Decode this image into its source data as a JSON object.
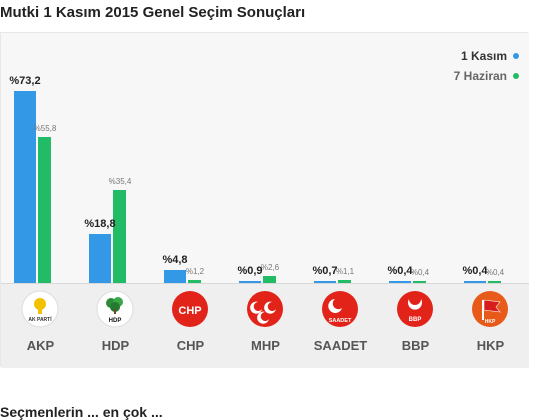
{
  "page": {
    "title": "Mutki 1 Kasım 2015 Genel Seçim Sonuçları",
    "footer_text": "Seçmenlerin ... en çok ..."
  },
  "legend": [
    {
      "label": "1 Kasım",
      "color": "#3399e6"
    },
    {
      "label": "7 Haziran",
      "color": "#22bb66"
    }
  ],
  "parties": [
    {
      "name": "AKP",
      "logo_icon": "akp-logo-icon"
    },
    {
      "name": "HDP",
      "logo_icon": "hdp-logo-icon"
    },
    {
      "name": "CHP",
      "logo_icon": "chp-logo-icon"
    },
    {
      "name": "MHP",
      "logo_icon": "mhp-logo-icon"
    },
    {
      "name": "SAADET",
      "logo_icon": "saadet-logo-icon"
    },
    {
      "name": "BBP",
      "logo_icon": "bbp-logo-icon"
    },
    {
      "name": "HKP",
      "logo_icon": "hkp-logo-icon"
    }
  ],
  "chart_data": {
    "type": "bar",
    "title": "Mutki 1 Kasım 2015 Genel Seçim Sonuçları",
    "categories": [
      "AKP",
      "HDP",
      "CHP",
      "MHP",
      "SAADET",
      "BBP",
      "HKP"
    ],
    "series": [
      {
        "name": "1 Kasım",
        "values": [
          73.2,
          18.8,
          4.8,
          0.9,
          0.7,
          0.4,
          0.4
        ],
        "labels": [
          "%73,2",
          "%18,8",
          "%4,8",
          "%0,9",
          "%0,7",
          "%0,4",
          "%0,4"
        ],
        "color": "#3399e6"
      },
      {
        "name": "7 Haziran",
        "values": [
          55.8,
          35.4,
          1.2,
          2.6,
          1.1,
          0.4,
          0.4
        ],
        "labels": [
          "%55,8",
          "%35,4",
          "%1,2",
          "%2,6",
          "%1,1",
          "%0,4",
          "%0,4"
        ],
        "color": "#22bb66"
      }
    ],
    "ylim": [
      0,
      80
    ],
    "grid": false,
    "legend_position": "top-right"
  }
}
